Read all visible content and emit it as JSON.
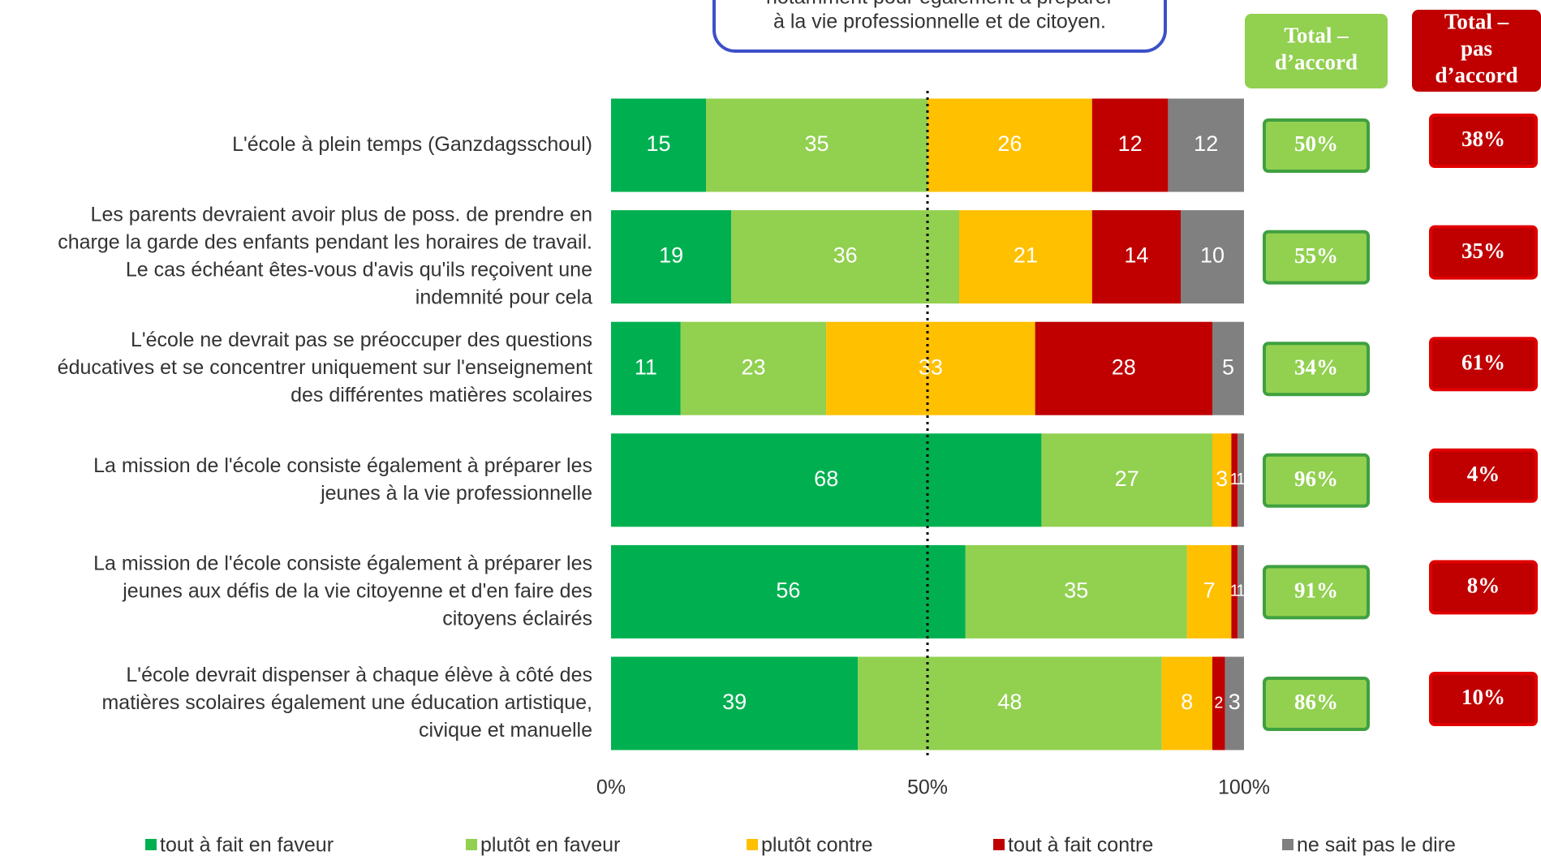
{
  "chart_data": {
    "type": "bar",
    "orientation": "horizontal",
    "stacked": true,
    "callout": [
      "notamment pour également à préparer",
      "à la vie professionnelle et de citoyen."
    ],
    "categories": [
      "L'école à plein temps (Ganzdagsschoul)",
      "Les parents devraient avoir plus de poss. de prendre en\ncharge la garde des enfants pendant les horaires de travail.\nLe cas échéant êtes-vous d'avis qu'ils reçoivent une\nindemnité pour cela",
      "L'école ne devrait pas se préoccuper des questions\néducatives et se concentrer uniquement sur l'enseignement\ndes différentes matières scolaires",
      "La mission de l'école consiste également à préparer les\njeunes à la vie professionnelle",
      "La mission de l'école consiste également à préparer les\njeunes aux défis de la vie citoyenne et d'en faire des\ncitoyens éclairés",
      "L'école devrait dispenser à chaque élève à côté des\nmatières scolaires également une éducation artistique,\ncivique et manuelle"
    ],
    "series": [
      {
        "name": "tout à fait en faveur",
        "color": "#00b050",
        "values": [
          15,
          19,
          11,
          68,
          56,
          39
        ]
      },
      {
        "name": "plutôt en faveur",
        "color": "#92d050",
        "values": [
          35,
          36,
          23,
          27,
          35,
          48
        ]
      },
      {
        "name": "plutôt contre",
        "color": "#ffc000",
        "values": [
          26,
          21,
          33,
          3,
          7,
          8
        ]
      },
      {
        "name": "tout à fait contre",
        "color": "#c00000",
        "values": [
          12,
          14,
          28,
          1,
          1,
          2
        ]
      },
      {
        "name": "ne sait pas le dire",
        "color": "#808080",
        "values": [
          12,
          10,
          5,
          1,
          1,
          3
        ]
      }
    ],
    "xlim": [
      0,
      100
    ],
    "xticks": [
      {
        "value": 0,
        "label": "0%"
      },
      {
        "value": 50,
        "label": "50%"
      },
      {
        "value": 100,
        "label": "100%"
      }
    ],
    "reference_line": 50,
    "totals": [
      {
        "title": "Total –\nd’accord",
        "color": "#92d050",
        "values": [
          50,
          55,
          34,
          96,
          91,
          86
        ],
        "value_labels": [
          "50%",
          "55%",
          "34%",
          "96%",
          "91%",
          "86%"
        ]
      },
      {
        "title": "Total –\npas\nd’accord",
        "color": "#c00000",
        "values": [
          38,
          35,
          61,
          4,
          8,
          10
        ],
        "value_labels": [
          "38%",
          "35%",
          "61%",
          "4%",
          "8%",
          "10%"
        ]
      }
    ]
  }
}
